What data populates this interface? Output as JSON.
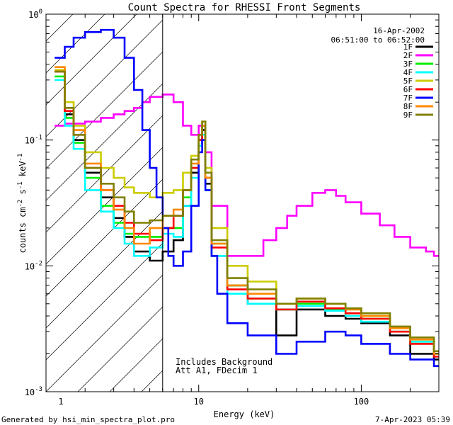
{
  "chart_data": {
    "type": "line",
    "title": "Count Spectra for RHESSI Front Segments",
    "xlabel": "Energy (keV)",
    "ylabel_parts": [
      "counts cm",
      "-2",
      " s",
      "-1",
      " keV",
      "-1"
    ],
    "x_scale": "log",
    "y_scale": "log",
    "xlim": [
      1.15,
      300
    ],
    "ylim": [
      0.001,
      1.0
    ],
    "x_ticks": [
      {
        "v": 10,
        "label": "10"
      },
      {
        "v": 100,
        "label": "100"
      }
    ],
    "x_label_1": "1",
    "y_ticks": [
      {
        "v": 1,
        "base": "10",
        "exp": "0"
      },
      {
        "v": 0.1,
        "base": "10",
        "exp": "-1"
      },
      {
        "v": 0.01,
        "base": "10",
        "exp": "-2"
      },
      {
        "v": 0.001,
        "base": "10",
        "exp": "-3"
      }
    ],
    "date": "16-Apr-2002",
    "time_range": "06:51:00 to 06:52:00",
    "excluded_below_keV": 6,
    "annotations": [
      "Includes Background",
      "Att A1, FDecim 1"
    ],
    "footer_left": "Generated by hsi_min_spectra_plot.pro",
    "footer_right": "7-Apr-2023 05:39",
    "legend_position": "top-right",
    "series": [
      {
        "name": "1F",
        "color": "#000000",
        "points": [
          [
            1.3,
            0.35
          ],
          [
            1.5,
            0.16
          ],
          [
            1.7,
            0.1
          ],
          [
            2.0,
            0.055
          ],
          [
            2.5,
            0.035
          ],
          [
            3.0,
            0.024
          ],
          [
            3.5,
            0.017
          ],
          [
            4.0,
            0.013
          ],
          [
            5.0,
            0.011
          ],
          [
            6.0,
            0.013
          ],
          [
            7.0,
            0.016
          ],
          [
            8.0,
            0.03
          ],
          [
            9.0,
            0.055
          ],
          [
            10.0,
            0.09
          ],
          [
            10.5,
            0.12
          ],
          [
            11.0,
            0.045
          ],
          [
            12.0,
            0.012
          ],
          [
            15.0,
            0.007
          ],
          [
            20.0,
            0.005
          ],
          [
            30.0,
            0.0028
          ],
          [
            40.0,
            0.0045
          ],
          [
            60.0,
            0.004
          ],
          [
            80.0,
            0.0038
          ],
          [
            100.0,
            0.0035
          ],
          [
            150.0,
            0.0028
          ],
          [
            200.0,
            0.002
          ],
          [
            280.0,
            0.0018
          ]
        ]
      },
      {
        "name": "2F",
        "color": "#ff00ff",
        "points": [
          [
            1.3,
            0.13
          ],
          [
            1.5,
            0.135
          ],
          [
            2.0,
            0.14
          ],
          [
            2.5,
            0.15
          ],
          [
            3.0,
            0.16
          ],
          [
            3.5,
            0.17
          ],
          [
            4.0,
            0.18
          ],
          [
            4.5,
            0.2
          ],
          [
            5.0,
            0.22
          ],
          [
            6.0,
            0.23
          ],
          [
            7.0,
            0.2
          ],
          [
            8.0,
            0.13
          ],
          [
            9.0,
            0.11
          ],
          [
            10.0,
            0.13
          ],
          [
            11.0,
            0.08
          ],
          [
            12.0,
            0.03
          ],
          [
            15.0,
            0.012
          ],
          [
            20.0,
            0.012
          ],
          [
            25.0,
            0.016
          ],
          [
            30.0,
            0.02
          ],
          [
            35.0,
            0.025
          ],
          [
            40.0,
            0.03
          ],
          [
            50.0,
            0.038
          ],
          [
            60.0,
            0.04
          ],
          [
            70.0,
            0.036
          ],
          [
            80.0,
            0.032
          ],
          [
            100.0,
            0.026
          ],
          [
            130.0,
            0.021
          ],
          [
            160.0,
            0.017
          ],
          [
            200.0,
            0.014
          ],
          [
            250.0,
            0.013
          ],
          [
            280.0,
            0.012
          ]
        ]
      },
      {
        "name": "3F",
        "color": "#00ee00",
        "points": [
          [
            1.3,
            0.32
          ],
          [
            1.5,
            0.15
          ],
          [
            1.7,
            0.095
          ],
          [
            2.0,
            0.05
          ],
          [
            2.5,
            0.03
          ],
          [
            3.0,
            0.022
          ],
          [
            3.5,
            0.018
          ],
          [
            4.0,
            0.017
          ],
          [
            5.0,
            0.017
          ],
          [
            6.0,
            0.02
          ],
          [
            7.0,
            0.02
          ],
          [
            8.0,
            0.035
          ],
          [
            9.0,
            0.06
          ],
          [
            10.0,
            0.1
          ],
          [
            10.5,
            0.13
          ],
          [
            11.0,
            0.05
          ],
          [
            12.0,
            0.015
          ],
          [
            15.0,
            0.007
          ],
          [
            20.0,
            0.0055
          ],
          [
            30.0,
            0.0045
          ],
          [
            40.0,
            0.005
          ],
          [
            60.0,
            0.0045
          ],
          [
            80.0,
            0.0042
          ],
          [
            100.0,
            0.0038
          ],
          [
            150.0,
            0.003
          ],
          [
            200.0,
            0.0025
          ],
          [
            280.0,
            0.002
          ]
        ]
      },
      {
        "name": "4F",
        "color": "#00ffff",
        "points": [
          [
            1.3,
            0.3
          ],
          [
            1.5,
            0.13
          ],
          [
            1.7,
            0.085
          ],
          [
            2.0,
            0.04
          ],
          [
            2.5,
            0.027
          ],
          [
            3.0,
            0.02
          ],
          [
            3.5,
            0.015
          ],
          [
            4.0,
            0.012
          ],
          [
            5.0,
            0.014
          ],
          [
            6.0,
            0.018
          ],
          [
            7.0,
            0.017
          ],
          [
            8.0,
            0.03
          ],
          [
            9.0,
            0.05
          ],
          [
            10.0,
            0.09
          ],
          [
            10.5,
            0.11
          ],
          [
            11.0,
            0.04
          ],
          [
            12.0,
            0.012
          ],
          [
            15.0,
            0.006
          ],
          [
            20.0,
            0.005
          ],
          [
            30.0,
            0.0045
          ],
          [
            40.0,
            0.0048
          ],
          [
            60.0,
            0.0044
          ],
          [
            80.0,
            0.004
          ],
          [
            100.0,
            0.0036
          ],
          [
            150.0,
            0.003
          ],
          [
            200.0,
            0.0025
          ],
          [
            280.0,
            0.002
          ]
        ]
      },
      {
        "name": "5F",
        "color": "#cccc00",
        "points": [
          [
            1.3,
            0.36
          ],
          [
            1.5,
            0.2
          ],
          [
            1.7,
            0.13
          ],
          [
            2.0,
            0.08
          ],
          [
            2.5,
            0.06
          ],
          [
            3.0,
            0.05
          ],
          [
            3.5,
            0.042
          ],
          [
            4.0,
            0.038
          ],
          [
            5.0,
            0.035
          ],
          [
            6.0,
            0.038
          ],
          [
            7.0,
            0.04
          ],
          [
            8.0,
            0.055
          ],
          [
            9.0,
            0.075
          ],
          [
            10.0,
            0.11
          ],
          [
            10.5,
            0.14
          ],
          [
            11.0,
            0.06
          ],
          [
            12.0,
            0.02
          ],
          [
            15.0,
            0.01
          ],
          [
            20.0,
            0.0075
          ],
          [
            30.0,
            0.005
          ],
          [
            40.0,
            0.0055
          ],
          [
            60.0,
            0.005
          ],
          [
            80.0,
            0.0045
          ],
          [
            100.0,
            0.004
          ],
          [
            150.0,
            0.0032
          ],
          [
            200.0,
            0.0026
          ],
          [
            280.0,
            0.002
          ]
        ]
      },
      {
        "name": "6F",
        "color": "#ff0000",
        "points": [
          [
            1.3,
            0.35
          ],
          [
            1.5,
            0.17
          ],
          [
            1.7,
            0.11
          ],
          [
            2.0,
            0.06
          ],
          [
            2.5,
            0.04
          ],
          [
            3.0,
            0.03
          ],
          [
            3.5,
            0.022
          ],
          [
            4.0,
            0.018
          ],
          [
            5.0,
            0.016
          ],
          [
            6.0,
            0.02
          ],
          [
            7.0,
            0.025
          ],
          [
            8.0,
            0.04
          ],
          [
            9.0,
            0.06
          ],
          [
            10.0,
            0.1
          ],
          [
            10.5,
            0.13
          ],
          [
            11.0,
            0.05
          ],
          [
            12.0,
            0.014
          ],
          [
            15.0,
            0.0065
          ],
          [
            20.0,
            0.0055
          ],
          [
            30.0,
            0.0045
          ],
          [
            40.0,
            0.0052
          ],
          [
            60.0,
            0.0046
          ],
          [
            80.0,
            0.0042
          ],
          [
            100.0,
            0.0038
          ],
          [
            150.0,
            0.003
          ],
          [
            200.0,
            0.0024
          ],
          [
            280.0,
            0.0019
          ]
        ]
      },
      {
        "name": "7F",
        "color": "#0000ff",
        "points": [
          [
            1.3,
            0.45
          ],
          [
            1.5,
            0.55
          ],
          [
            1.7,
            0.65
          ],
          [
            2.0,
            0.72
          ],
          [
            2.5,
            0.75
          ],
          [
            3.0,
            0.65
          ],
          [
            3.5,
            0.45
          ],
          [
            4.0,
            0.25
          ],
          [
            4.5,
            0.12
          ],
          [
            5.0,
            0.06
          ],
          [
            5.5,
            0.035
          ],
          [
            6.0,
            0.02
          ],
          [
            6.5,
            0.012
          ],
          [
            7.0,
            0.01
          ],
          [
            8.0,
            0.013
          ],
          [
            9.0,
            0.03
          ],
          [
            10.0,
            0.08
          ],
          [
            10.5,
            0.1
          ],
          [
            11.0,
            0.04
          ],
          [
            12.0,
            0.012
          ],
          [
            13.0,
            0.006
          ],
          [
            15.0,
            0.0035
          ],
          [
            20.0,
            0.0028
          ],
          [
            30.0,
            0.002
          ],
          [
            40.0,
            0.0025
          ],
          [
            60.0,
            0.003
          ],
          [
            80.0,
            0.0028
          ],
          [
            100.0,
            0.0024
          ],
          [
            150.0,
            0.002
          ],
          [
            200.0,
            0.0018
          ],
          [
            280.0,
            0.0016
          ]
        ]
      },
      {
        "name": "8F",
        "color": "#ff8800",
        "points": [
          [
            1.3,
            0.38
          ],
          [
            1.5,
            0.18
          ],
          [
            1.7,
            0.12
          ],
          [
            2.0,
            0.065
          ],
          [
            2.5,
            0.04
          ],
          [
            3.0,
            0.028
          ],
          [
            3.5,
            0.02
          ],
          [
            4.0,
            0.015
          ],
          [
            5.0,
            0.02
          ],
          [
            6.0,
            0.025
          ],
          [
            7.0,
            0.028
          ],
          [
            8.0,
            0.04
          ],
          [
            9.0,
            0.065
          ],
          [
            10.0,
            0.11
          ],
          [
            10.5,
            0.13
          ],
          [
            11.0,
            0.05
          ],
          [
            12.0,
            0.015
          ],
          [
            15.0,
            0.007
          ],
          [
            20.0,
            0.006
          ],
          [
            30.0,
            0.005
          ],
          [
            40.0,
            0.0055
          ],
          [
            60.0,
            0.005
          ],
          [
            80.0,
            0.0045
          ],
          [
            100.0,
            0.004
          ],
          [
            150.0,
            0.0032
          ],
          [
            200.0,
            0.0026
          ],
          [
            280.0,
            0.002
          ]
        ]
      },
      {
        "name": "9F",
        "color": "#808000",
        "points": [
          [
            1.3,
            0.35
          ],
          [
            1.5,
            0.18
          ],
          [
            1.7,
            0.11
          ],
          [
            2.0,
            0.06
          ],
          [
            2.5,
            0.045
          ],
          [
            3.0,
            0.035
          ],
          [
            3.5,
            0.027
          ],
          [
            4.0,
            0.022
          ],
          [
            5.0,
            0.023
          ],
          [
            6.0,
            0.025
          ],
          [
            7.0,
            0.025
          ],
          [
            8.0,
            0.04
          ],
          [
            9.0,
            0.07
          ],
          [
            10.0,
            0.11
          ],
          [
            10.5,
            0.14
          ],
          [
            11.0,
            0.055
          ],
          [
            12.0,
            0.016
          ],
          [
            15.0,
            0.008
          ],
          [
            20.0,
            0.0065
          ],
          [
            30.0,
            0.005
          ],
          [
            40.0,
            0.0055
          ],
          [
            60.0,
            0.005
          ],
          [
            80.0,
            0.0046
          ],
          [
            100.0,
            0.0042
          ],
          [
            150.0,
            0.0033
          ],
          [
            200.0,
            0.0027
          ],
          [
            280.0,
            0.0021
          ]
        ]
      }
    ]
  }
}
